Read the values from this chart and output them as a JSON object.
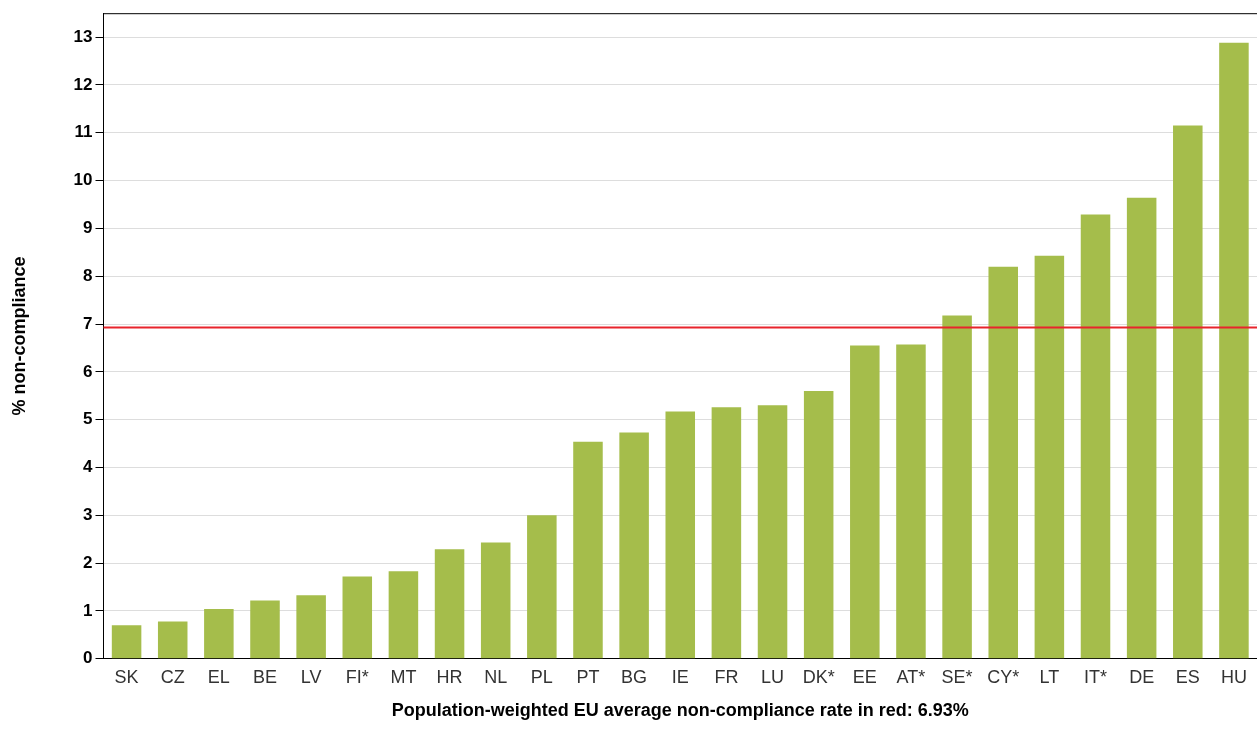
{
  "chart_data": {
    "type": "bar",
    "xlabel": "Population-weighted EU average non-compliance rate in red: 6.93%",
    "ylabel": "% non-compliance",
    "categories": [
      "SK",
      "CZ",
      "EL",
      "BE",
      "LV",
      "FI*",
      "MT",
      "HR",
      "NL",
      "PL",
      "PT",
      "BG",
      "IE",
      "FR",
      "LU",
      "DK*",
      "EE",
      "AT*",
      "SE*",
      "CY*",
      "LT",
      "IT*",
      "DE",
      "ES",
      "HU"
    ],
    "values": [
      0.7,
      0.78,
      1.04,
      1.22,
      1.33,
      1.72,
      1.83,
      2.29,
      2.43,
      3.0,
      4.54,
      4.73,
      5.17,
      5.26,
      5.3,
      5.6,
      6.55,
      6.57,
      7.18,
      8.2,
      8.43,
      9.29,
      9.64,
      11.15,
      12.88
    ],
    "color": "#a5bd4b",
    "ylim": [
      0,
      13.5
    ],
    "yticks": [
      0,
      1,
      2,
      3,
      4,
      5,
      6,
      7,
      8,
      9,
      10,
      11,
      12,
      13
    ],
    "grid": "y",
    "ref_lines": [
      {
        "axis": "y",
        "value": 6.93,
        "color": "#e8242c"
      }
    ]
  }
}
